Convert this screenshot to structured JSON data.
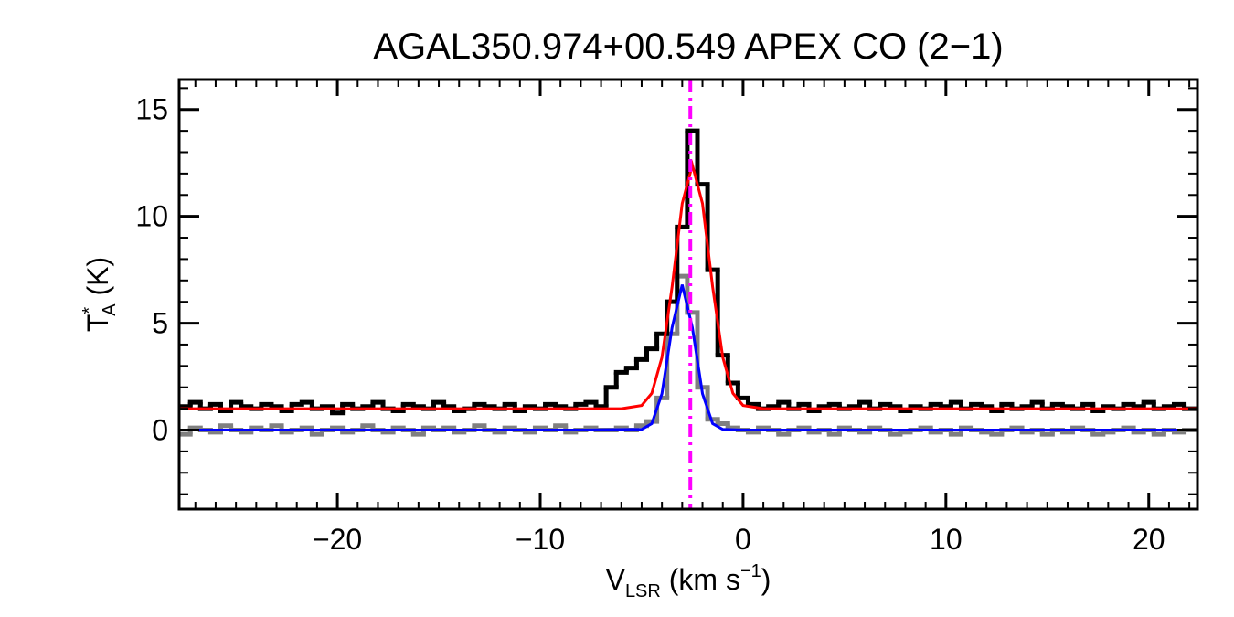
{
  "chart_data": {
    "type": "spectrum",
    "title": "AGAL350.974+00.549  APEX CO (2−1)",
    "xlabel": {
      "main": "V",
      "sub": "LSR",
      "rest": " (km s",
      "sup": "−1",
      "end": ")"
    },
    "ylabel": {
      "main": "T",
      "sup": "*",
      "sub": "A",
      "rest": " (K)"
    },
    "xlim": [
      -27.8,
      22.4
    ],
    "ylim": [
      -3.7,
      16.4
    ],
    "xticks": [
      {
        "value": -20,
        "label": "−20"
      },
      {
        "value": -10,
        "label": "−10"
      },
      0,
      10,
      20
    ],
    "yticks": [
      0,
      5,
      10,
      15
    ],
    "xminor_step": 1,
    "yminor_step": 1,
    "channel_width": 0.5,
    "x": [
      -27.5,
      -27,
      -26.5,
      -26,
      -25.5,
      -25,
      -24.5,
      -24,
      -23.5,
      -23,
      -22.5,
      -22,
      -21.5,
      -21,
      -20.5,
      -20,
      -19.5,
      -19,
      -18.5,
      -18,
      -17.5,
      -17,
      -16.5,
      -16,
      -15.5,
      -15,
      -14.5,
      -14,
      -13.5,
      -13,
      -12.5,
      -12,
      -11.5,
      -11,
      -10.5,
      -10,
      -9.5,
      -9,
      -8.5,
      -8,
      -7.5,
      -7,
      -6.5,
      -6,
      -5.5,
      -5,
      -4.5,
      -4,
      -3.5,
      -3,
      -2.5,
      -2,
      -1.5,
      -1,
      -0.5,
      0,
      0.5,
      1,
      1.5,
      2,
      2.5,
      3,
      3.5,
      4,
      4.5,
      5,
      5.5,
      6,
      6.5,
      7,
      7.5,
      8,
      8.5,
      9,
      9.5,
      10,
      10.5,
      11,
      11.5,
      12,
      12.5,
      13,
      13.5,
      14,
      14.5,
      15,
      15.5,
      16,
      16.5,
      17,
      17.5,
      18,
      18.5,
      19,
      19.5,
      20,
      20.5,
      21,
      21.5,
      22
    ],
    "series": [
      {
        "color": "#808080",
        "style": "step",
        "values": [
          -0.2,
          0.1,
          0.0,
          -0.1,
          0.2,
          0.0,
          -0.1,
          0.1,
          0.0,
          0.2,
          -0.1,
          0.0,
          0.1,
          -0.2,
          0.0,
          0.1,
          -0.1,
          0.0,
          0.2,
          0.0,
          -0.1,
          0.1,
          0.0,
          -0.2,
          0.1,
          0.0,
          0.1,
          -0.1,
          0.0,
          0.2,
          0.0,
          -0.1,
          0.1,
          0.0,
          -0.1,
          0.1,
          0.0,
          0.2,
          -0.1,
          0.0,
          0.1,
          0.0,
          0.0,
          0.1,
          0.0,
          0.2,
          0.4,
          1.5,
          4.5,
          7.2,
          5.5,
          2.0,
          0.5,
          0.3,
          0.1,
          0.0,
          -0.1,
          0.1,
          0.0,
          -0.2,
          0.0,
          0.1,
          -0.1,
          0.0,
          -0.2,
          0.1,
          0.0,
          -0.1,
          0.1,
          0.0,
          -0.2,
          -0.1,
          0.0,
          0.1,
          -0.1,
          0.0,
          -0.2,
          0.1,
          0.0,
          -0.1,
          -0.2,
          0.0,
          0.1,
          -0.1,
          0.0,
          -0.2,
          0.0,
          -0.1,
          0.1,
          0.0,
          -0.2,
          -0.1,
          0.0,
          0.1,
          -0.1,
          0.0,
          -0.2,
          0.0,
          -0.1,
          0.0
        ]
      },
      {
        "color": "#000000",
        "style": "step",
        "values": [
          1.1,
          1.3,
          1.0,
          1.2,
          0.9,
          1.3,
          1.1,
          1.0,
          1.2,
          1.1,
          0.9,
          1.2,
          1.3,
          1.0,
          1.1,
          0.8,
          1.2,
          1.0,
          1.1,
          1.3,
          1.0,
          0.9,
          1.2,
          1.1,
          1.0,
          1.3,
          1.1,
          0.9,
          1.0,
          1.2,
          1.1,
          1.0,
          1.2,
          0.9,
          1.1,
          1.0,
          1.2,
          1.1,
          1.0,
          1.2,
          1.3,
          1.1,
          2.0,
          2.7,
          2.9,
          3.3,
          3.8,
          4.5,
          6.0,
          9.5,
          14.0,
          11.5,
          7.5,
          3.5,
          2.2,
          1.5,
          1.2,
          1.0,
          1.1,
          1.3,
          1.0,
          1.2,
          0.9,
          1.1,
          1.2,
          1.0,
          1.1,
          1.3,
          1.0,
          1.2,
          1.1,
          0.9,
          1.1,
          1.0,
          1.2,
          1.1,
          1.3,
          1.0,
          1.2,
          1.1,
          0.9,
          1.2,
          1.0,
          1.1,
          1.3,
          1.0,
          1.2,
          1.1,
          1.0,
          1.2,
          0.9,
          1.1,
          1.0,
          1.2,
          1.1,
          1.3,
          1.0,
          1.1,
          1.2,
          1.0
        ]
      },
      {
        "color": "#ff0000",
        "style": "line",
        "x": [
          -27.8,
          -8,
          -6,
          -5,
          -4.5,
          -4,
          -3.5,
          -3,
          -2.5,
          -2,
          -1.5,
          -1,
          -0.5,
          0,
          1,
          22.4
        ],
        "values": [
          1.0,
          1.0,
          1.0,
          1.15,
          1.72,
          3.4,
          6.7,
          10.6,
          12.4,
          10.6,
          6.7,
          3.4,
          1.72,
          1.15,
          1.0,
          1.0
        ]
      },
      {
        "color": "#0000ff",
        "style": "line",
        "x": [
          -27.8,
          -8,
          -5,
          -4.5,
          -4,
          -3.5,
          -3,
          -2.5,
          -2,
          -1.5,
          -1,
          0,
          22.4
        ],
        "values": [
          0.0,
          0.0,
          0.03,
          0.3,
          1.7,
          4.8,
          6.8,
          4.8,
          1.7,
          0.3,
          0.03,
          0.0,
          0.0
        ]
      }
    ],
    "vline": {
      "x": -2.6,
      "color": "#ff00ff",
      "style": "dashdot"
    }
  }
}
